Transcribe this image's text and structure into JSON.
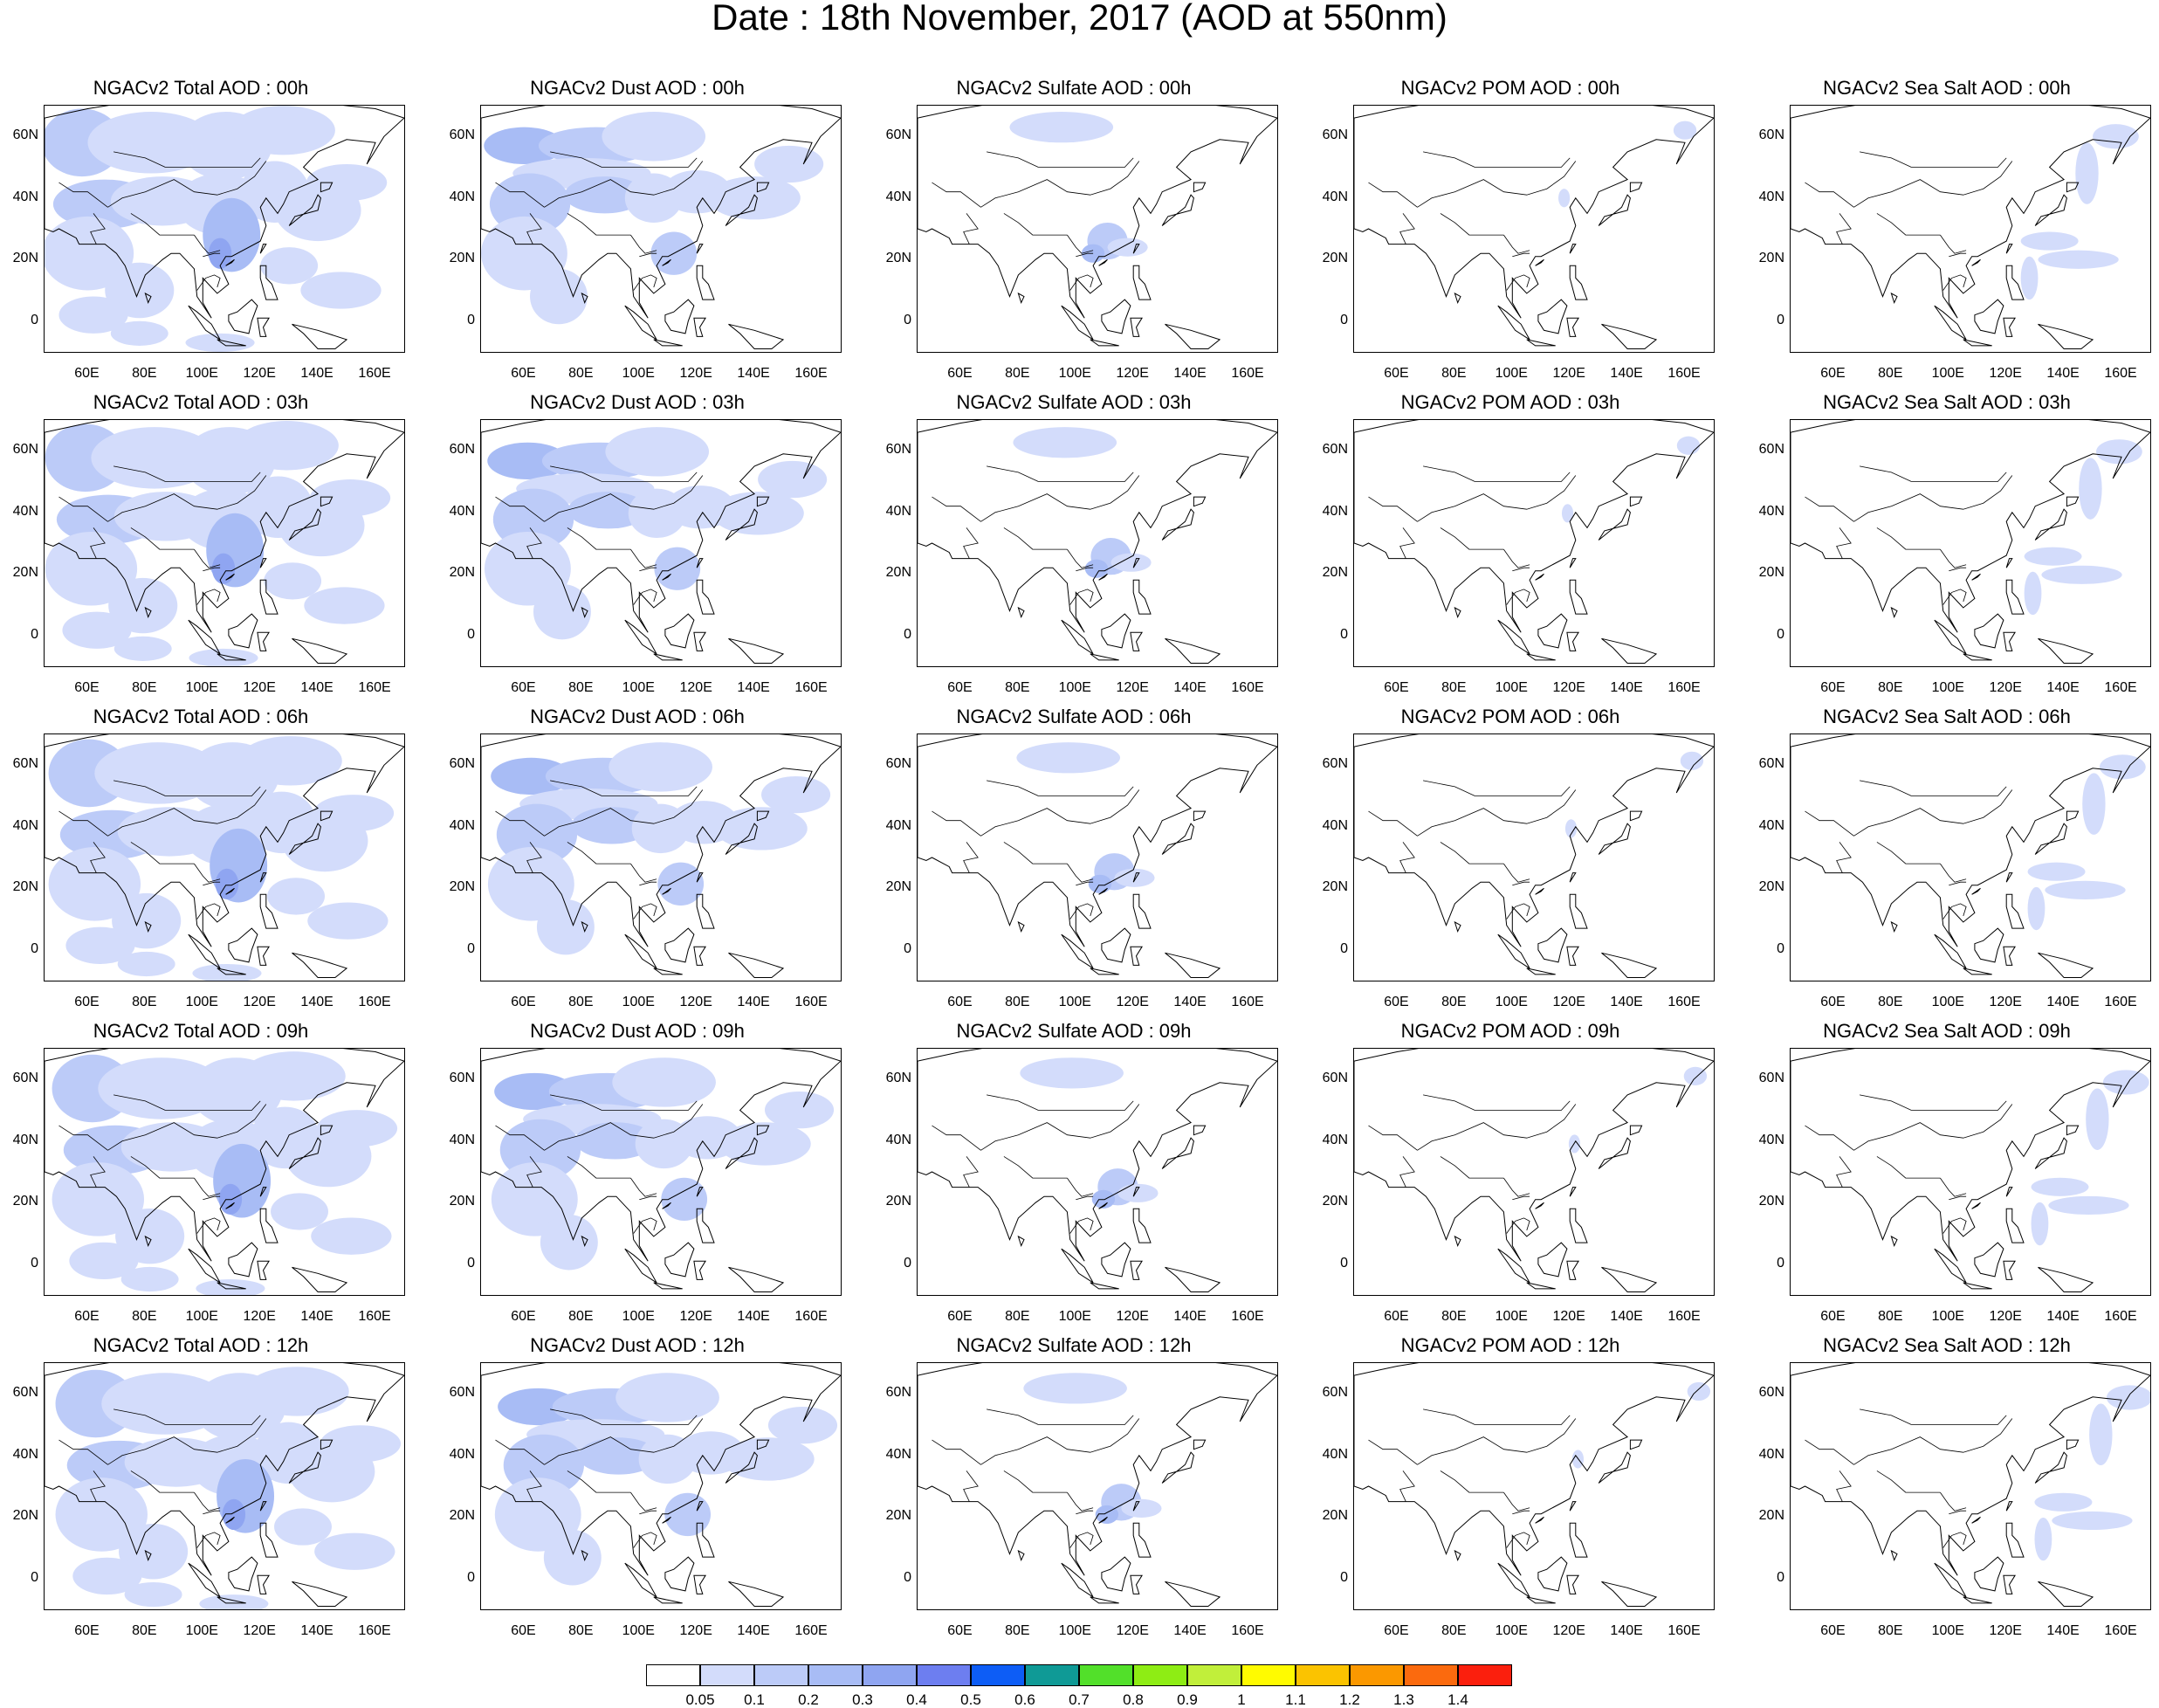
{
  "title": "Date : 18th November, 2017 (AOD at 550nm)",
  "lat_labels": [
    "60N",
    "40N",
    "20N",
    "0"
  ],
  "lon_labels": [
    "60E",
    "80E",
    "100E",
    "120E",
    "140E",
    "160E"
  ],
  "panel_titles": [
    [
      "NGACv2 Total AOD : 00h",
      "NGACv2 Dust AOD : 00h",
      "NGACv2 Sulfate AOD : 00h",
      "NGACv2 POM AOD : 00h",
      "NGACv2 Sea Salt AOD : 00h"
    ],
    [
      "NGACv2 Total AOD : 03h",
      "NGACv2 Dust AOD : 03h",
      "NGACv2 Sulfate AOD : 03h",
      "NGACv2 POM AOD : 03h",
      "NGACv2 Sea Salt AOD : 03h"
    ],
    [
      "NGACv2 Total AOD : 06h",
      "NGACv2 Dust AOD : 06h",
      "NGACv2 Sulfate AOD : 06h",
      "NGACv2 POM AOD : 06h",
      "NGACv2 Sea Salt AOD : 06h"
    ],
    [
      "NGACv2 Total AOD : 09h",
      "NGACv2 Dust AOD : 09h",
      "NGACv2 Sulfate AOD : 09h",
      "NGACv2 POM AOD : 09h",
      "NGACv2 Sea Salt  AOD : 09h"
    ],
    [
      "NGACv2 Total AOD  : 12h",
      "NGACv2 Dust AOD : 12h",
      "NGACv2 Sulfate AOD : 12h",
      "NGACv2 POM  AOD : 12h",
      "NGACv2 Sea Salt  AOD : 12h"
    ]
  ],
  "colorbar": {
    "labels": [
      "0.05",
      "0.1",
      "0.2",
      "0.3",
      "0.4",
      "0.5",
      "0.6",
      "0.7",
      "0.8",
      "0.9",
      "1",
      "1.1",
      "1.2",
      "1.3",
      "1.4"
    ],
    "colors": [
      "#ffffff",
      "#d3dcfb",
      "#bccbf8",
      "#a8bcf5",
      "#8fa5f1",
      "#6d7ef0",
      "#0d5df6",
      "#0f9a96",
      "#52e02a",
      "#8eed14",
      "#c1ef3a",
      "#fffb00",
      "#fbc300",
      "#fb9800",
      "#fb6a0e",
      "#fb1f0d"
    ]
  },
  "map_extent": {
    "lon_range": [
      45,
      170
    ],
    "lat_range": [
      -10,
      70
    ]
  },
  "aod_fields": {
    "total": "widespread light-blue (0.1-0.3) over central/east Asia, darker (0.3-0.4) over south China, light over Indian Ocean and NW Pacific",
    "dust": "light-blue band across central Asia to NW Pacific, light over Arabian Sea and Indian Ocean",
    "sulfate": "patch over south China / Gulf of Tonkin (0.1-0.3), patch over Mongolia/southern Siberia",
    "pom": "nearly clear, small patches near east China and Kamchatka",
    "sea_salt": "streaks over NW Pacific near Japan and east of Philippines"
  }
}
